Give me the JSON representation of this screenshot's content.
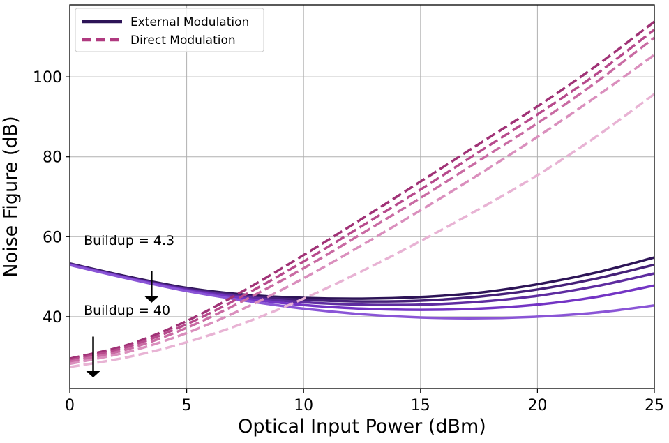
{
  "chart_data": {
    "type": "line",
    "xlabel": "Optical Input Power (dBm)",
    "ylabel": "Noise Figure (dB)",
    "xlim": [
      0,
      25
    ],
    "ylim": [
      22,
      118
    ],
    "xticks": [
      0,
      5,
      10,
      15,
      20,
      25
    ],
    "yticks": [
      40,
      60,
      80,
      100
    ],
    "grid": true,
    "legend_position": "top-left",
    "legend": [
      {
        "label": "External Modulation",
        "style": "solid",
        "color": "#2d1457"
      },
      {
        "label": "Direct Modulation",
        "style": "dashed",
        "color": "#b03a80"
      }
    ],
    "annotations": [
      {
        "text": "Buildup = 4.3",
        "x": 0.6,
        "y": 58
      },
      {
        "text": "Buildup = 40",
        "x": 0.6,
        "y": 40.5
      }
    ],
    "arrows": [
      {
        "x": 3.5,
        "y_from": 51.5,
        "y_to": 43.5
      },
      {
        "x": 1.0,
        "y_from": 35.0,
        "y_to": 24.8
      }
    ],
    "x": [
      0,
      2.5,
      5,
      7.5,
      10,
      12.5,
      15,
      17.5,
      20,
      22.5,
      25
    ],
    "series": [
      {
        "group": "External Modulation",
        "style": "solid",
        "color": "#2d1457",
        "values": [
          53.3,
          50.0,
          47.2,
          45.5,
          44.7,
          44.5,
          44.9,
          46.0,
          48.1,
          51.0,
          54.8
        ]
      },
      {
        "group": "External Modulation",
        "style": "solid",
        "color": "#452078",
        "values": [
          53.2,
          49.8,
          47.0,
          45.2,
          44.2,
          43.8,
          44.0,
          45.0,
          46.8,
          49.5,
          53.0
        ]
      },
      {
        "group": "External Modulation",
        "style": "solid",
        "color": "#5e2ca0",
        "values": [
          53.1,
          49.7,
          46.8,
          44.9,
          43.6,
          43.0,
          43.0,
          43.7,
          45.2,
          47.6,
          50.8
        ]
      },
      {
        "group": "External Modulation",
        "style": "solid",
        "color": "#7334c4",
        "values": [
          53.0,
          49.6,
          46.6,
          44.5,
          42.9,
          42.0,
          41.7,
          42.0,
          43.0,
          44.9,
          47.8
        ]
      },
      {
        "group": "External Modulation",
        "style": "solid",
        "color": "#8a55d6",
        "values": [
          52.9,
          49.5,
          46.4,
          44.0,
          42.0,
          40.6,
          39.8,
          39.6,
          40.0,
          41.0,
          42.8
        ]
      },
      {
        "group": "Direct Modulation",
        "style": "dashed",
        "color": "#a03276",
        "values": [
          29.5,
          33.0,
          38.9,
          46.7,
          55.4,
          64.5,
          73.8,
          83.2,
          92.6,
          102.7,
          113.8
        ]
      },
      {
        "group": "Direct Modulation",
        "style": "dashed",
        "color": "#b74a8c",
        "values": [
          29.1,
          32.5,
          38.1,
          45.5,
          53.8,
          62.7,
          71.8,
          81.2,
          90.6,
          100.6,
          111.8
        ]
      },
      {
        "group": "Direct Modulation",
        "style": "dashed",
        "color": "#c96ba3",
        "values": [
          28.7,
          31.9,
          37.2,
          44.2,
          52.1,
          60.8,
          69.7,
          79.0,
          88.4,
          98.6,
          109.8
        ]
      },
      {
        "group": "Direct Modulation",
        "style": "dashed",
        "color": "#da8fbd",
        "values": [
          28.2,
          31.2,
          35.9,
          42.2,
          49.6,
          57.9,
          66.6,
          75.6,
          85.0,
          95.0,
          105.5
        ]
      },
      {
        "group": "Direct Modulation",
        "style": "dashed",
        "color": "#e8b3d4",
        "values": [
          27.4,
          29.9,
          33.6,
          38.5,
          44.5,
          51.4,
          58.9,
          66.9,
          75.4,
          85.0,
          95.7
        ]
      }
    ]
  }
}
